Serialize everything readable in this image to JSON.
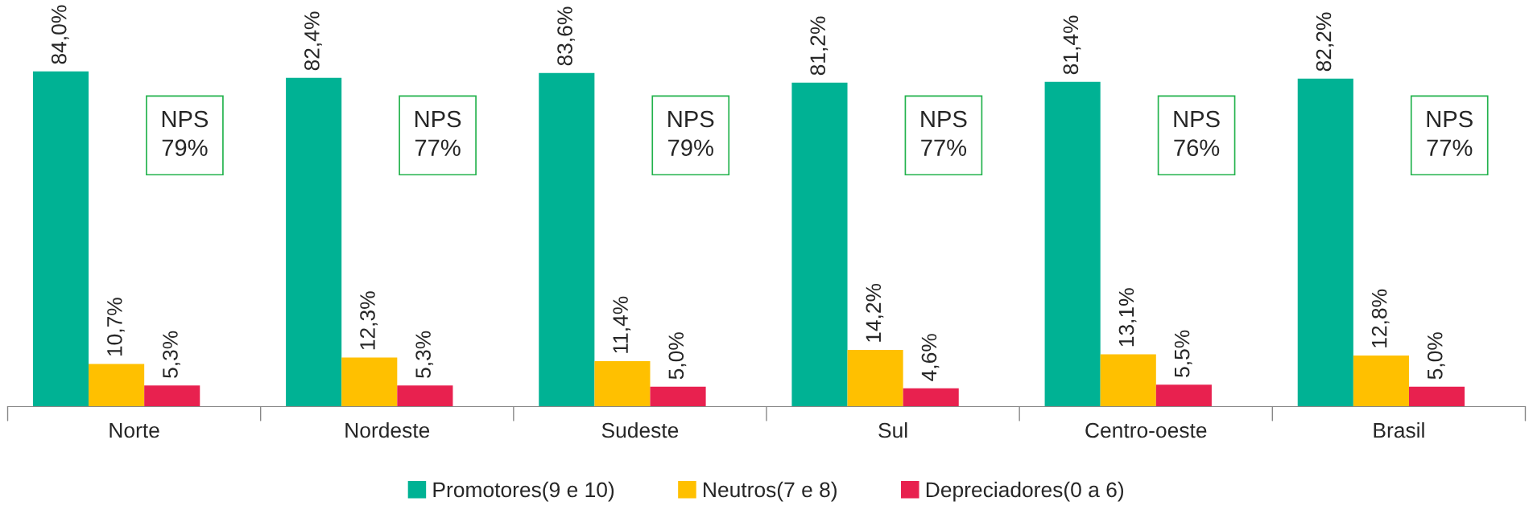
{
  "chart_data": {
    "type": "bar",
    "categories": [
      "Norte",
      "Nordeste",
      "Sudeste",
      "Sul",
      "Centro-oeste",
      "Brasil"
    ],
    "series": [
      {
        "name": "Promotores(9 e 10)",
        "color": "#00b294",
        "values": [
          84.0,
          82.4,
          83.6,
          81.2,
          81.4,
          82.2
        ],
        "value_labels": [
          "84,0%",
          "82,4%",
          "83,6%",
          "81,2%",
          "81,4%",
          "82,2%"
        ]
      },
      {
        "name": "Neutros(7 e 8)",
        "color": "#ffc000",
        "values": [
          10.7,
          12.3,
          11.4,
          14.2,
          13.1,
          12.8
        ],
        "value_labels": [
          "10,7%",
          "12,3%",
          "11,4%",
          "14,2%",
          "13,1%",
          "12,8%"
        ]
      },
      {
        "name": "Depreciadores(0 a 6)",
        "color": "#e8214f",
        "values": [
          5.3,
          5.3,
          5.0,
          4.6,
          5.5,
          5.0
        ],
        "value_labels": [
          "5,3%",
          "5,3%",
          "5,0%",
          "4,6%",
          "5,5%",
          "5,0%"
        ]
      }
    ],
    "annotations": [
      "NPS\n79%",
      "NPS\n77%",
      "NPS\n79%",
      "NPS\n77%",
      "NPS\n76%",
      "NPS\n77%"
    ],
    "legend": "bottom",
    "grid": false
  }
}
